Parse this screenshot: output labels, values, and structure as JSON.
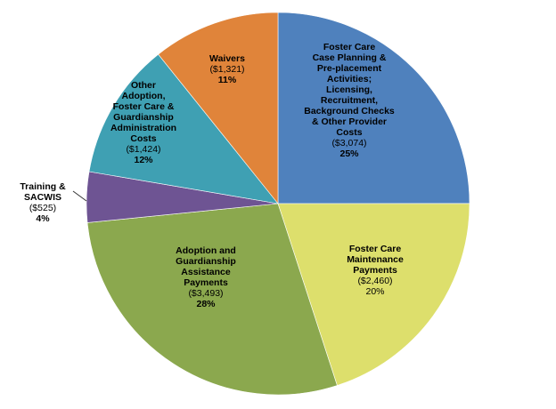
{
  "chart_data": {
    "type": "pie",
    "title": "",
    "slices": [
      {
        "label_lines": [
          "Foster Care",
          "Case Planning &",
          "Pre-placement",
          "Activities;",
          "Licensing,",
          "Recruitment,",
          "Background Checks",
          "& Other Provider",
          "Costs"
        ],
        "amount": "($3,074)",
        "percent": "25%",
        "value": 3074,
        "color": "#4F81BD"
      },
      {
        "label_lines": [
          "Foster Care",
          "Maintenance",
          "Payments"
        ],
        "amount": "($2,460)",
        "percent": "20%",
        "value": 2460,
        "color": "#DDDF6C"
      },
      {
        "label_lines": [
          "Adoption and",
          "Guardianship",
          "Assistance",
          "Payments"
        ],
        "amount": "($3,493)",
        "percent": "28%",
        "value": 3493,
        "color": "#8BA84E"
      },
      {
        "label_lines": [
          "Training &",
          "SACWIS"
        ],
        "amount": "($525)",
        "percent": "4%",
        "value": 525,
        "color": "#6E5493"
      },
      {
        "label_lines": [
          "Other",
          "Adoption,",
          "Foster Care &",
          "Guardianship",
          "Administration",
          "Costs"
        ],
        "amount": "($1,424)",
        "percent": "12%",
        "value": 1424,
        "color": "#3FA0B3"
      },
      {
        "label_lines": [
          "Waivers"
        ],
        "amount": "($1,321)",
        "percent": "11%",
        "value": 1321,
        "color": "#E0843A"
      }
    ]
  }
}
